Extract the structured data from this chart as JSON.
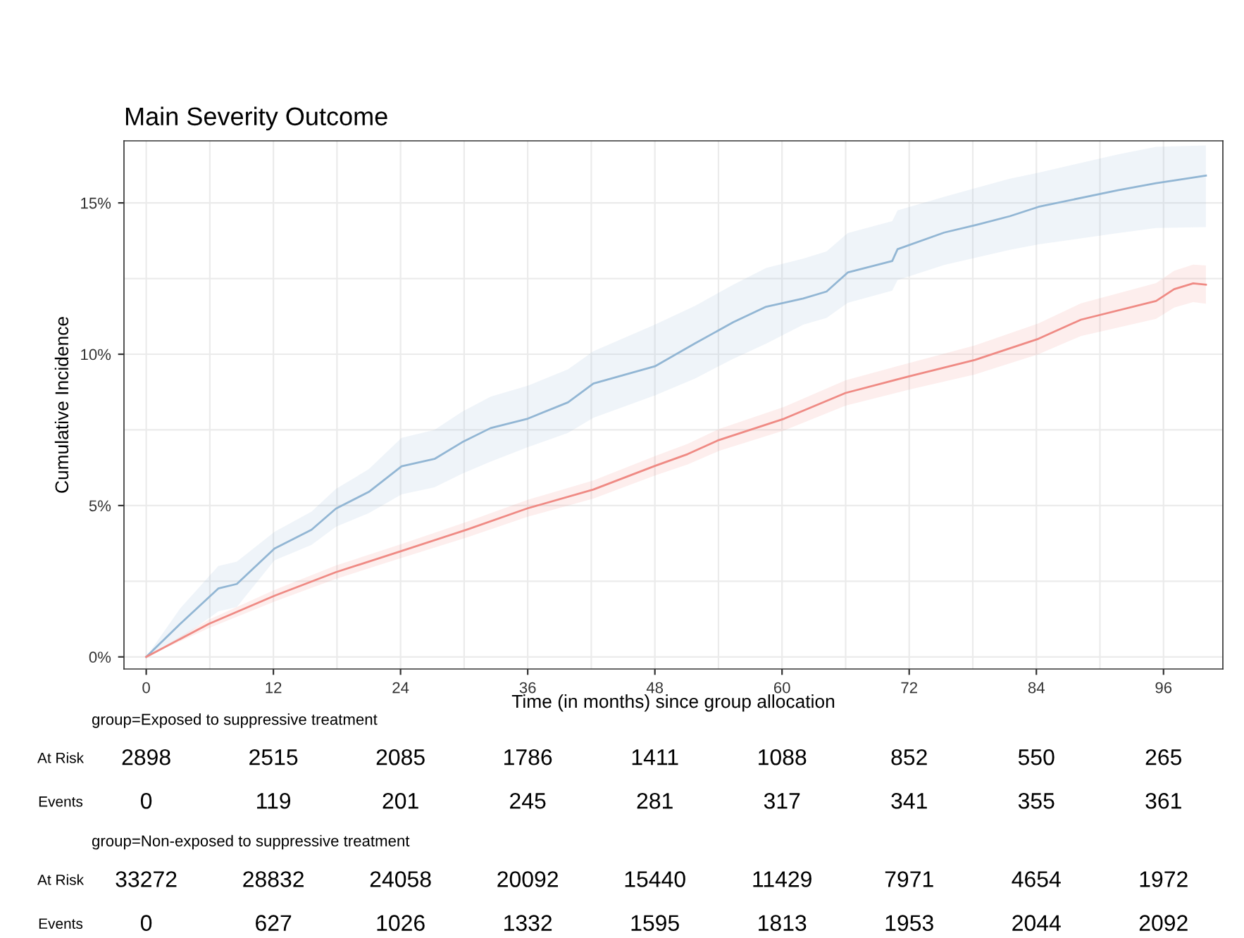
{
  "chart_data": {
    "type": "line",
    "title": "Main Severity Outcome",
    "xlabel": "Time (in months) since group allocation",
    "ylabel": "Cumulative Incidence",
    "xlim": [
      -2.1,
      101.6
    ],
    "ylim": [
      -0.4,
      17.05
    ],
    "xticks": [
      0,
      {
        "value": 6,
        "label": null
      },
      12,
      {
        "value": 18,
        "label": null
      },
      24,
      {
        "value": 30,
        "label": null
      },
      36,
      {
        "value": 42,
        "label": null
      },
      48,
      {
        "value": 54,
        "label": null
      },
      60,
      {
        "value": 66,
        "label": null
      },
      72,
      {
        "value": 78,
        "label": null
      },
      84,
      {
        "value": 90,
        "label": null
      },
      96
    ],
    "yticks": [
      {
        "value": 0,
        "label": "0%"
      },
      {
        "value": 2.5,
        "label": null
      },
      {
        "value": 5,
        "label": "5%"
      },
      {
        "value": 7.5,
        "label": null
      },
      {
        "value": 10,
        "label": "10%"
      },
      {
        "value": 12.5,
        "label": null
      },
      {
        "value": 15,
        "label": "15%"
      }
    ],
    "grid": true,
    "legend": false,
    "series": [
      {
        "color": "#92b6d4",
        "x": [
          0,
          3.2,
          6.8,
          8.55,
          12.1,
          15.6,
          17.9,
          21.0,
          24.1,
          27.2,
          29.8,
          32.5,
          36.0,
          39.8,
          42.2,
          48.0,
          51.8,
          55.4,
          58.5,
          62.0,
          64.2,
          66.2,
          70.4,
          70.9,
          75.3,
          78.4,
          81.5,
          84.2,
          91.7,
          95.3,
          100
        ],
        "values": [
          0,
          1.09,
          2.26,
          2.41,
          3.58,
          4.2,
          4.9,
          5.45,
          6.3,
          6.54,
          7.09,
          7.56,
          7.87,
          8.41,
          9.03,
          9.6,
          10.36,
          11.06,
          11.57,
          11.84,
          12.07,
          12.7,
          13.08,
          13.47,
          14.02,
          14.28,
          14.56,
          14.87,
          15.42,
          15.65,
          15.9
        ],
        "lower": [
          0,
          0.6,
          1.5,
          1.65,
          3.19,
          3.7,
          4.3,
          4.75,
          5.37,
          5.6,
          6.05,
          6.45,
          6.93,
          7.4,
          7.9,
          8.64,
          9.2,
          9.85,
          10.35,
          10.98,
          11.2,
          11.7,
          12.1,
          12.45,
          12.95,
          13.2,
          13.45,
          13.63,
          14.0,
          14.17,
          14.2
        ],
        "upper": [
          0,
          1.6,
          3.0,
          3.15,
          4.13,
          4.8,
          5.55,
          6.2,
          7.24,
          7.5,
          8.1,
          8.6,
          8.96,
          9.5,
          10.1,
          10.98,
          11.6,
          12.3,
          12.85,
          13.16,
          13.4,
          14.0,
          14.4,
          14.75,
          15.2,
          15.5,
          15.8,
          16.0,
          16.6,
          16.85,
          16.9
        ]
      },
      {
        "color": "#ef8a84",
        "x": [
          0,
          5.9,
          12.1,
          17.9,
          24.1,
          30.3,
          36.0,
          42.2,
          48.0,
          51.1,
          54.0,
          60.2,
          66.0,
          72.0,
          78.2,
          84.2,
          88.2,
          95.3,
          97.0,
          98.8,
          100
        ],
        "values": [
          0,
          1.09,
          2.02,
          2.8,
          3.5,
          4.21,
          4.91,
          5.53,
          6.31,
          6.7,
          7.16,
          7.87,
          8.72,
          9.27,
          9.81,
          10.51,
          11.14,
          11.76,
          12.15,
          12.34,
          12.3
        ],
        "lower": [
          0,
          0.95,
          1.83,
          2.58,
          3.27,
          3.95,
          4.63,
          5.23,
          5.99,
          6.36,
          6.8,
          7.48,
          8.3,
          8.83,
          9.33,
          10.0,
          10.6,
          11.17,
          11.54,
          11.72,
          11.67
        ],
        "upper": [
          0,
          1.23,
          2.21,
          3.02,
          3.73,
          4.47,
          5.19,
          5.83,
          6.63,
          7.04,
          7.52,
          8.26,
          9.14,
          9.71,
          10.29,
          11.02,
          11.68,
          12.35,
          12.76,
          12.96,
          12.93
        ]
      }
    ],
    "annotations": [
      "group=Exposed to suppressive treatment",
      "At Risk",
      "2898",
      "2515",
      "2085",
      "1786",
      "1411",
      "1088",
      "852",
      "550",
      "265",
      "Events",
      "0",
      "119",
      "201",
      "245",
      "281",
      "317",
      "341",
      "355",
      "361",
      "group=Non-exposed to suppressive treatment",
      "At Risk",
      "33272",
      "28832",
      "24058",
      "20092",
      "15440",
      "11429",
      "7971",
      "4654",
      "1972",
      "Events",
      "0",
      "627",
      "1026",
      "1332",
      "1595",
      "1813",
      "1953",
      "2044",
      "2092"
    ]
  }
}
